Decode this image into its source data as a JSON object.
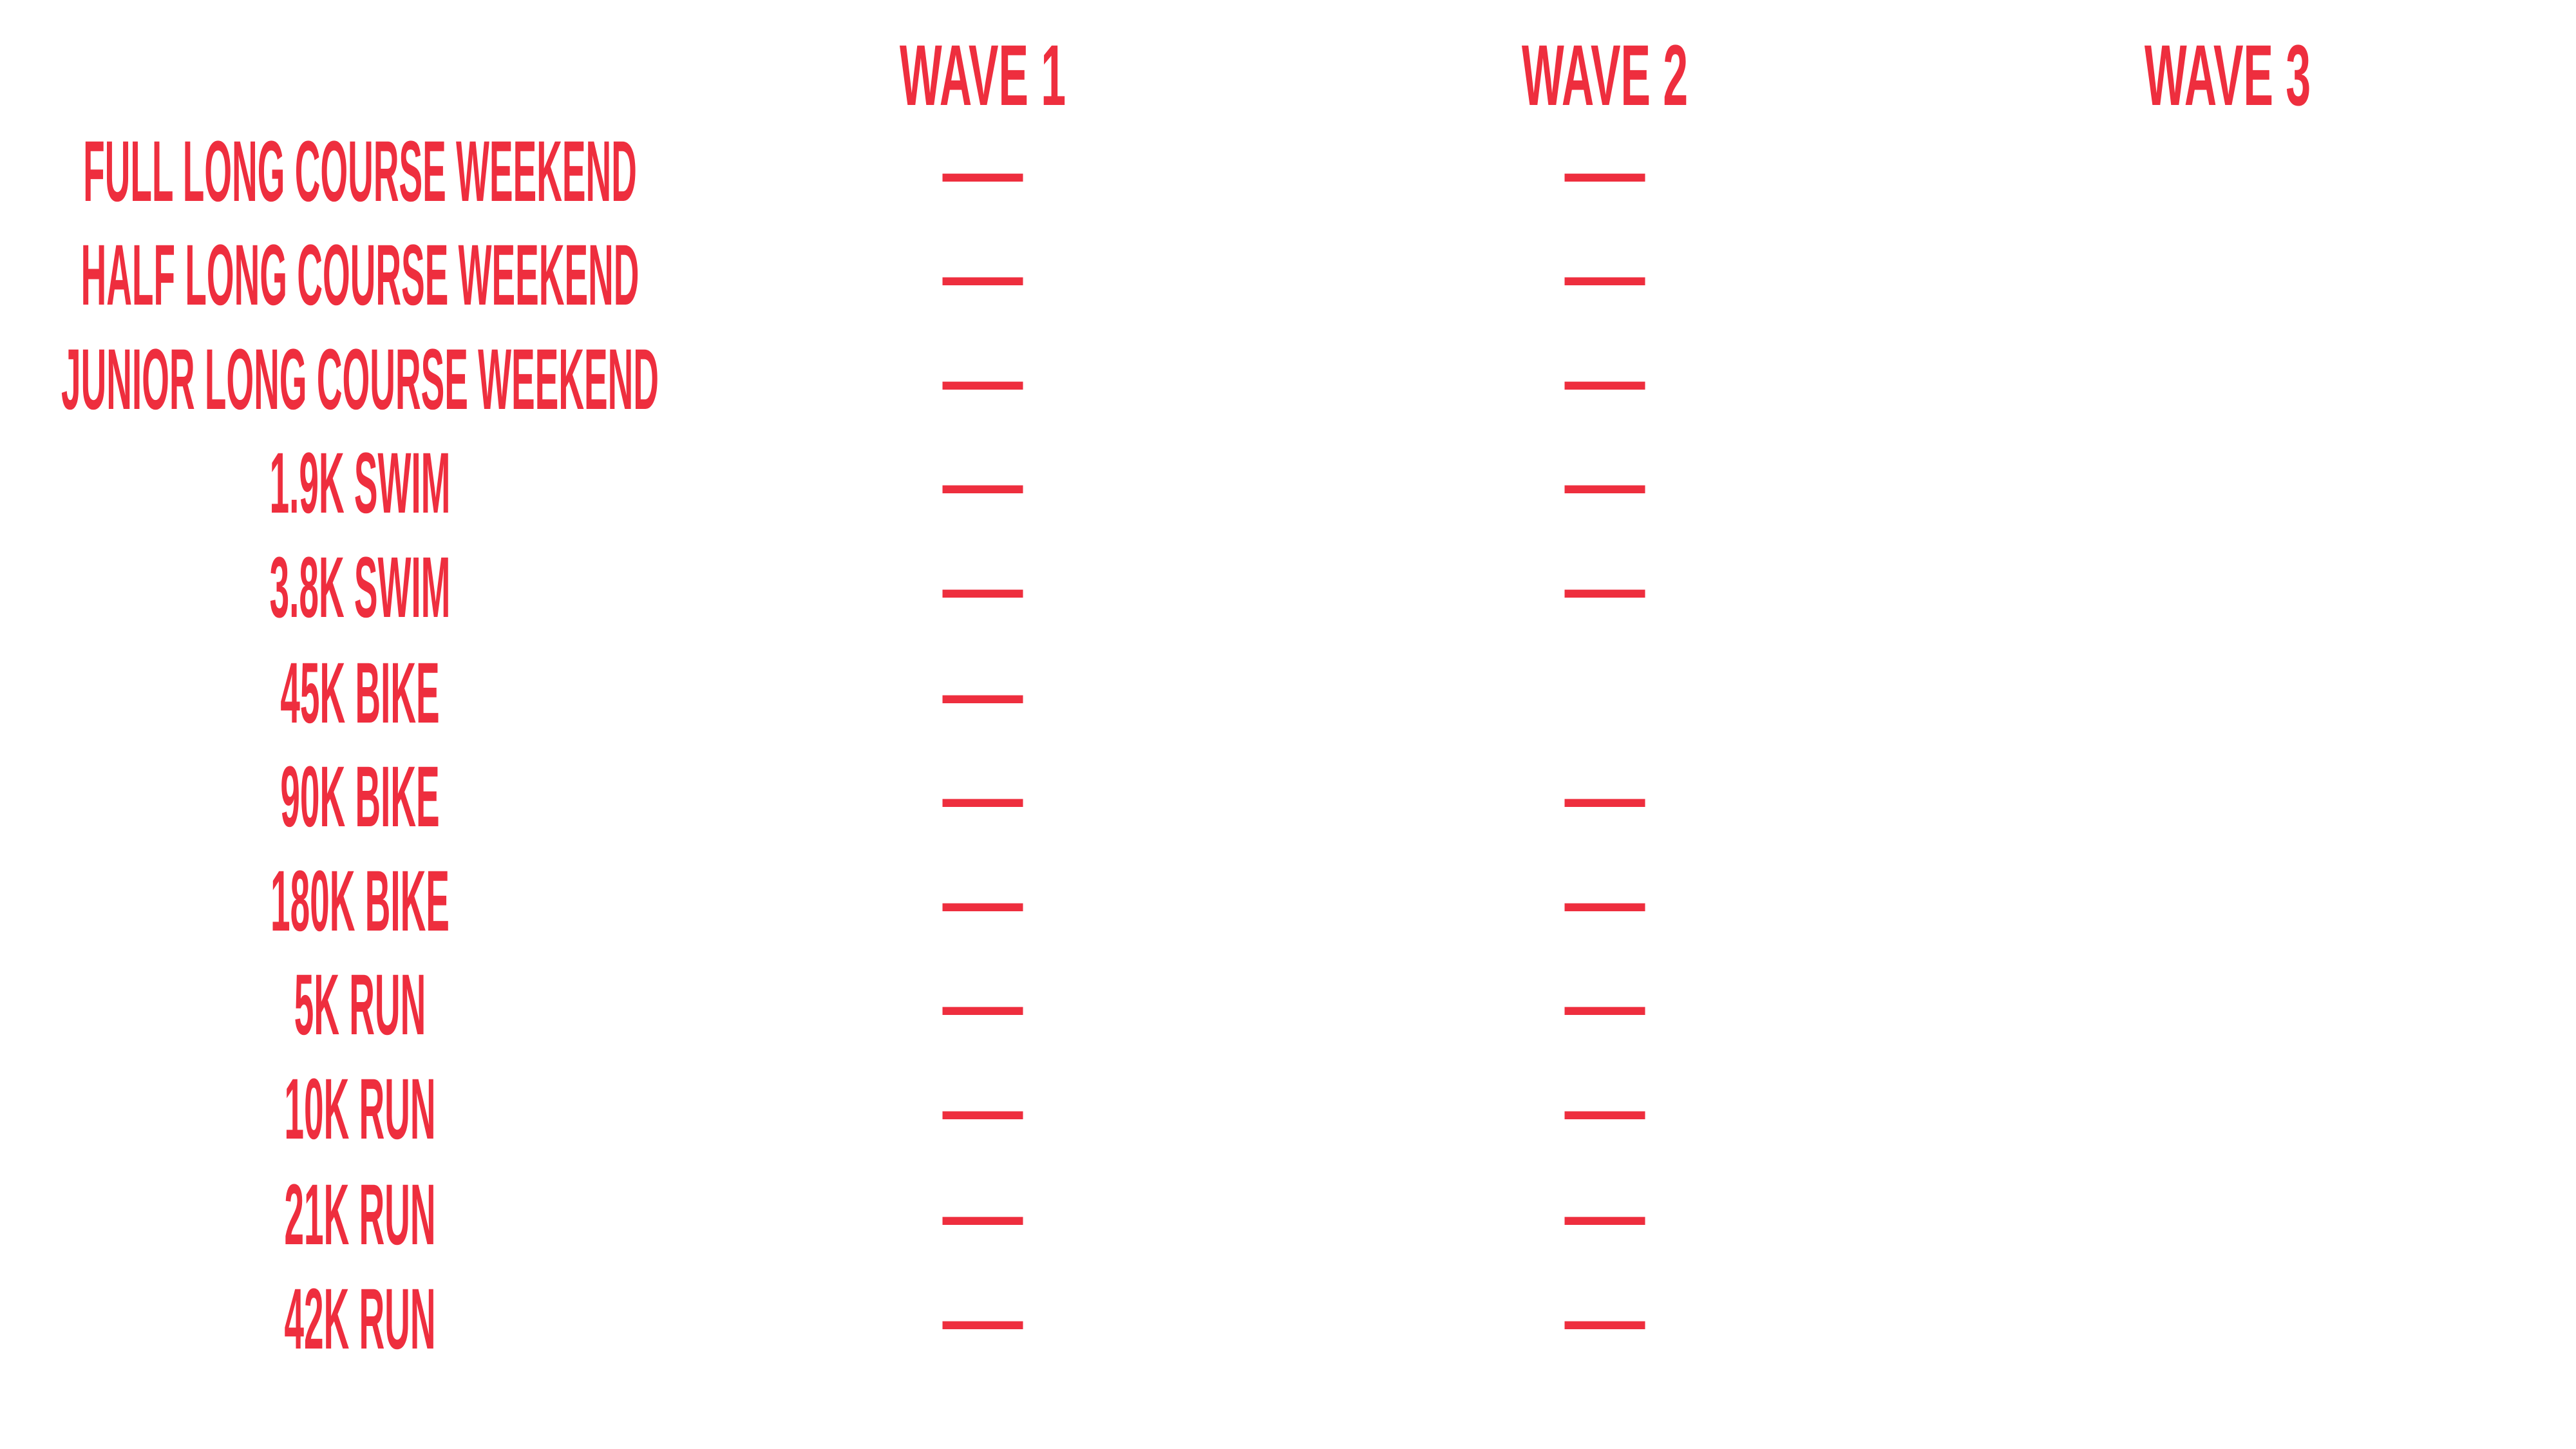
{
  "accent_color": "#EE2E3E",
  "headers": [
    "WAVE 1",
    "WAVE 2",
    "WAVE 3"
  ],
  "rows": [
    {
      "label": "FULL LONG COURSE WEEKEND",
      "cells": [
        "—",
        "—",
        ""
      ]
    },
    {
      "label": "HALF LONG COURSE WEEKEND",
      "cells": [
        "—",
        "—",
        ""
      ]
    },
    {
      "label": "JUNIOR LONG COURSE WEEKEND",
      "cells": [
        "—",
        "—",
        ""
      ]
    },
    {
      "label": "1.9K SWIM",
      "cells": [
        "—",
        "—",
        ""
      ]
    },
    {
      "label": "3.8K SWIM",
      "cells": [
        "—",
        "—",
        ""
      ]
    },
    {
      "label": "45K BIKE",
      "cells": [
        "—",
        "",
        ""
      ]
    },
    {
      "label": "90K BIKE",
      "cells": [
        "—",
        "—",
        ""
      ]
    },
    {
      "label": "180K BIKE",
      "cells": [
        "—",
        "—",
        ""
      ]
    },
    {
      "label": "5K RUN",
      "cells": [
        "—",
        "—",
        ""
      ]
    },
    {
      "label": "10K RUN",
      "cells": [
        "—",
        "—",
        ""
      ]
    },
    {
      "label": "21K RUN",
      "cells": [
        "—",
        "—",
        ""
      ]
    },
    {
      "label": "42K RUN",
      "cells": [
        "—",
        "—",
        ""
      ]
    }
  ]
}
